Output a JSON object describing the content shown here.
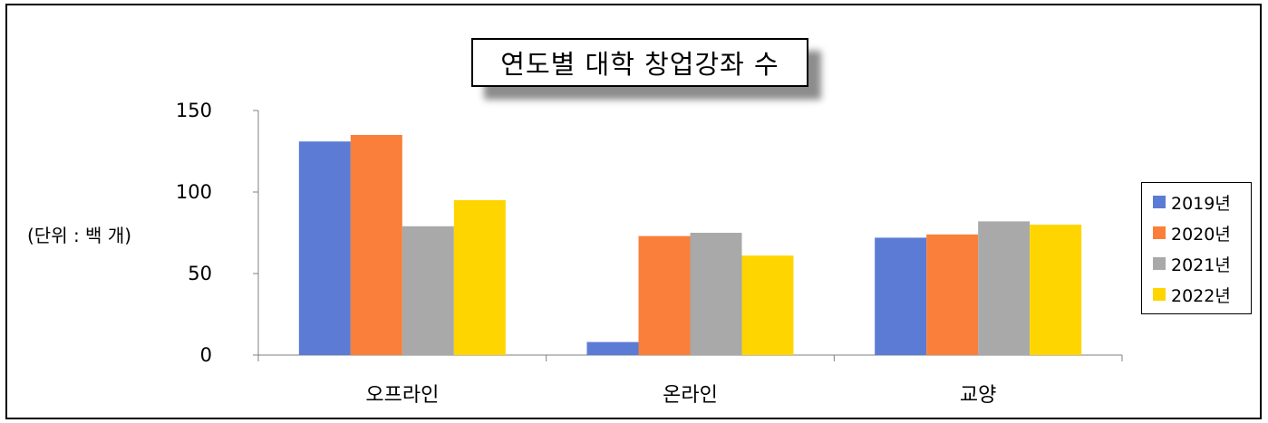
{
  "chart_data": {
    "type": "bar",
    "title": "연도별 대학 창업강좌 수",
    "unit_label": "(단위 : 백 개)",
    "categories": [
      "오프라인",
      "온라인",
      "교양"
    ],
    "series": [
      {
        "name": "2019년",
        "color": "#5B7BD5",
        "values": [
          131,
          8,
          72
        ]
      },
      {
        "name": "2020년",
        "color": "#FA7F3A",
        "values": [
          135,
          73,
          74
        ]
      },
      {
        "name": "2021년",
        "color": "#A9A9A9",
        "values": [
          79,
          75,
          82
        ]
      },
      {
        "name": "2022년",
        "color": "#FFD500",
        "values": [
          95,
          61,
          80
        ]
      }
    ],
    "ylim": [
      0,
      150
    ],
    "yticks": [
      "0",
      "50",
      "100",
      "150"
    ],
    "grid": false,
    "legend_position": "right"
  }
}
